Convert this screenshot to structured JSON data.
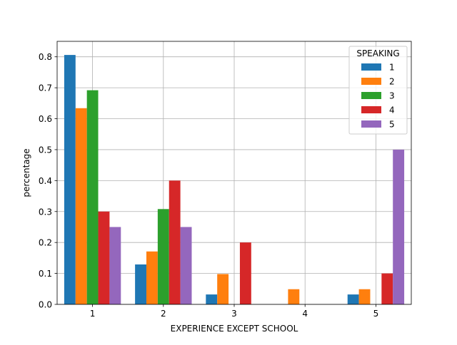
{
  "chart_data": {
    "type": "bar",
    "title": "",
    "xlabel": "EXPERIENCE EXCEPT SCHOOL",
    "ylabel": "percentage",
    "categories": [
      "1",
      "2",
      "3",
      "4",
      "5"
    ],
    "ylim": [
      0,
      0.85
    ],
    "yticks": [
      0.0,
      0.1,
      0.2,
      0.3,
      0.4,
      0.5,
      0.6,
      0.7,
      0.8
    ],
    "ytick_labels": [
      "0.0",
      "0.1",
      "0.2",
      "0.3",
      "0.4",
      "0.5",
      "0.6",
      "0.7",
      "0.8"
    ],
    "grid": true,
    "legend": {
      "title": "SPEAKING",
      "placement": "top-right"
    },
    "series": [
      {
        "name": "1",
        "color": "#1f77b4",
        "values": [
          0.806,
          0.129,
          0.032,
          0.0,
          0.032
        ]
      },
      {
        "name": "2",
        "color": "#ff7f0e",
        "values": [
          0.634,
          0.171,
          0.098,
          0.049,
          0.049
        ]
      },
      {
        "name": "3",
        "color": "#2ca02c",
        "values": [
          0.692,
          0.308,
          0.0,
          0.0,
          0.0
        ]
      },
      {
        "name": "4",
        "color": "#d62728",
        "values": [
          0.3,
          0.4,
          0.2,
          0.0,
          0.1
        ]
      },
      {
        "name": "5",
        "color": "#9467bd",
        "values": [
          0.25,
          0.25,
          0.0,
          0.0,
          0.5
        ]
      }
    ]
  }
}
